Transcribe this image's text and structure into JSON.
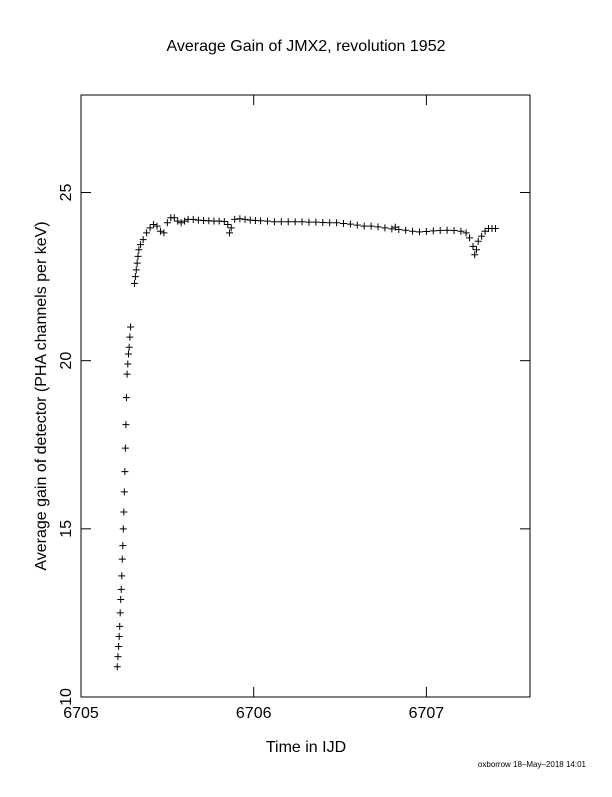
{
  "chart_data": {
    "type": "scatter",
    "title": "Average Gain of JMX2, revolution 1952",
    "x_label": "Time in IJD",
    "y_label": "Average gain of detector (PHA channels per keV)",
    "footer": "oxborrow 18–May–2018 14:01",
    "marker": "+",
    "color": "#000000",
    "xlim": [
      6705,
      6707.6
    ],
    "ylim": [
      10,
      27.9
    ],
    "xticks": [
      6705,
      6706,
      6707
    ],
    "yticks": [
      10,
      15,
      20,
      25
    ],
    "x": [
      6705.21,
      6705.214,
      6705.218,
      6705.221,
      6705.224,
      6705.227,
      6705.23,
      6705.233,
      6705.236,
      6705.239,
      6705.242,
      6705.245,
      6705.248,
      6705.251,
      6705.254,
      6705.257,
      6705.26,
      6705.263,
      6705.267,
      6705.271,
      6705.275,
      6705.279,
      6705.283,
      6705.287,
      6705.31,
      6705.315,
      6705.32,
      6705.325,
      6705.33,
      6705.335,
      6705.345,
      6705.36,
      6705.38,
      6705.4,
      6705.42,
      6705.44,
      6705.46,
      6705.48,
      6705.5,
      6705.52,
      6705.54,
      6705.56,
      6705.58,
      6705.6,
      6705.62,
      6705.65,
      6705.68,
      6705.71,
      6705.74,
      6705.77,
      6705.8,
      6705.83,
      6705.85,
      6705.86,
      6705.87,
      6705.89,
      6705.92,
      6705.95,
      6705.98,
      6706.01,
      6706.04,
      6706.08,
      6706.12,
      6706.16,
      6706.2,
      6706.24,
      6706.28,
      6706.32,
      6706.36,
      6706.4,
      6706.44,
      6706.48,
      6706.52,
      6706.56,
      6706.6,
      6706.64,
      6706.68,
      6706.72,
      6706.76,
      6706.8,
      6706.82,
      6706.84,
      6706.88,
      6706.92,
      6706.96,
      6707.0,
      6707.04,
      6707.08,
      6707.12,
      6707.16,
      6707.2,
      6707.23,
      6707.25,
      6707.27,
      6707.28,
      6707.29,
      6707.3,
      6707.32,
      6707.34,
      6707.36,
      6707.38,
      6707.4
    ],
    "values": [
      10.9,
      11.2,
      11.5,
      11.8,
      12.1,
      12.5,
      12.9,
      13.2,
      13.6,
      14.1,
      14.5,
      15.0,
      15.5,
      16.1,
      16.7,
      17.4,
      18.1,
      18.9,
      19.6,
      19.9,
      20.2,
      20.4,
      20.7,
      21.0,
      22.3,
      22.5,
      22.7,
      22.9,
      23.1,
      23.3,
      23.45,
      23.6,
      23.8,
      23.95,
      24.05,
      24.0,
      23.85,
      23.8,
      24.1,
      24.25,
      24.25,
      24.15,
      24.1,
      24.15,
      24.2,
      24.2,
      24.18,
      24.17,
      24.16,
      24.15,
      24.15,
      24.14,
      24.05,
      23.8,
      23.95,
      24.2,
      24.22,
      24.2,
      24.18,
      24.17,
      24.16,
      24.15,
      24.13,
      24.13,
      24.13,
      24.13,
      24.13,
      24.12,
      24.12,
      24.11,
      24.1,
      24.1,
      24.08,
      24.06,
      24.03,
      24.0,
      24.0,
      23.98,
      23.95,
      23.92,
      23.97,
      23.9,
      23.88,
      23.85,
      23.83,
      23.84,
      23.86,
      23.87,
      23.88,
      23.87,
      23.85,
      23.8,
      23.65,
      23.4,
      23.15,
      23.3,
      23.55,
      23.7,
      23.85,
      23.93,
      23.93,
      23.93
    ]
  }
}
